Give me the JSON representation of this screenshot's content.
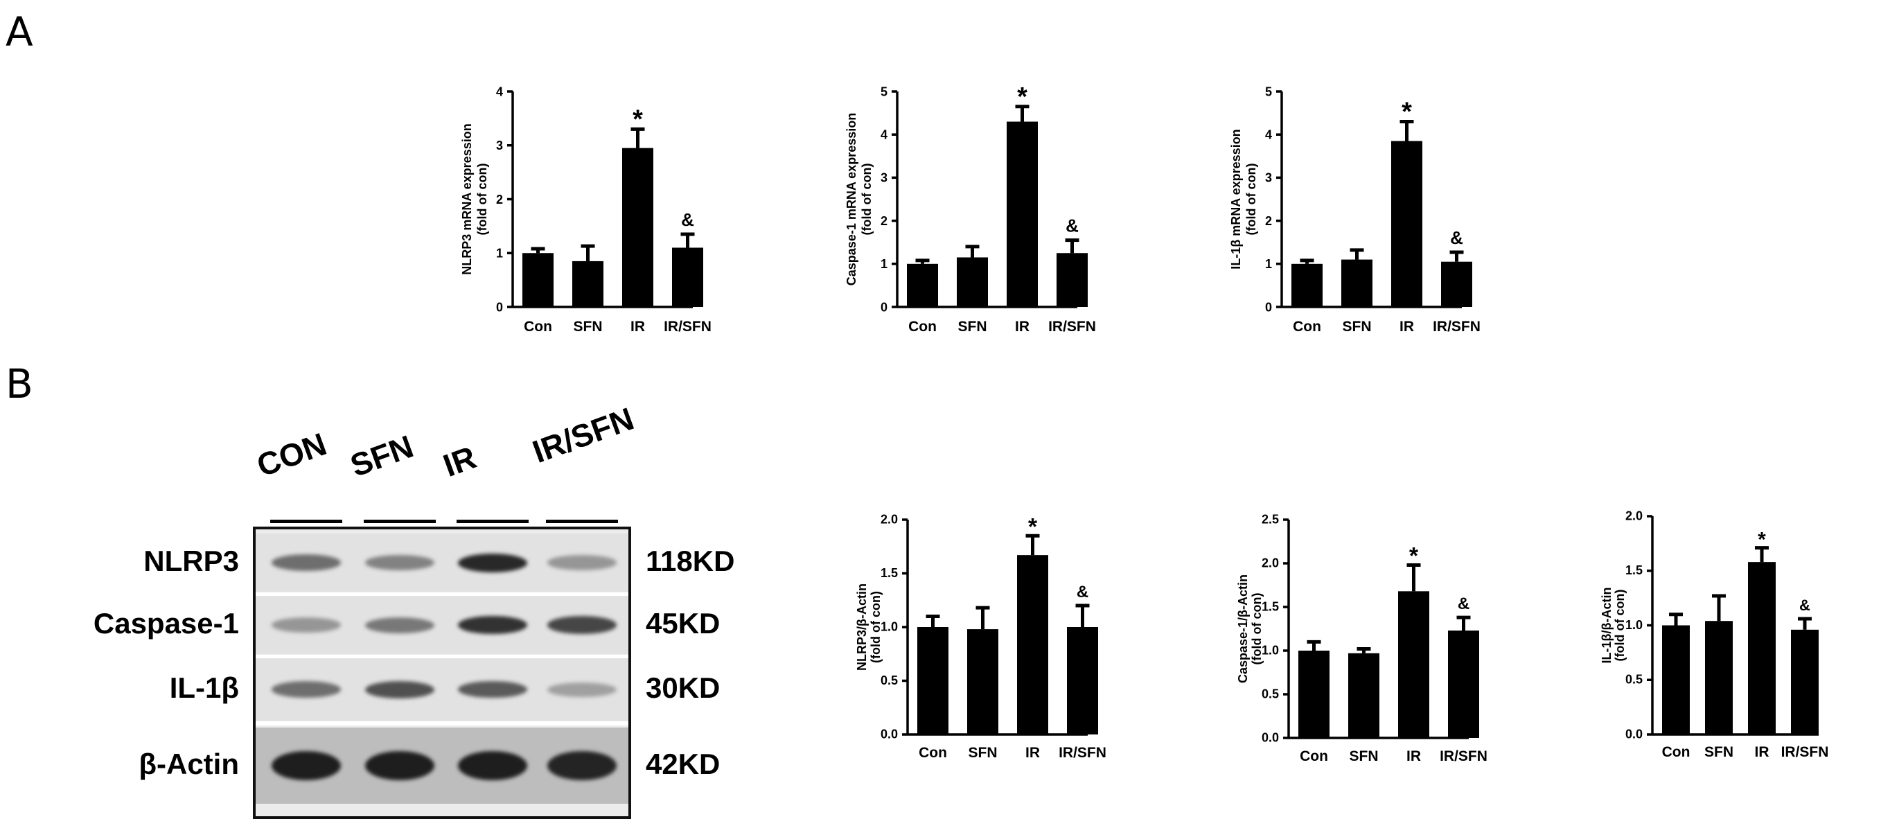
{
  "panels": {
    "a": "A",
    "b": "B"
  },
  "chart_data": [
    {
      "type": "bar",
      "panel": "A",
      "categories": [
        "Con",
        "SFN",
        "IR",
        "IR/SFN"
      ],
      "values": [
        1.0,
        0.85,
        2.95,
        1.1
      ],
      "errors": [
        0.08,
        0.28,
        0.35,
        0.25
      ],
      "annotations": [
        "",
        "",
        "*",
        "&"
      ],
      "ylabel": [
        "NLRP3 mRNA expression",
        "(fold of con)"
      ],
      "ylim": [
        0,
        4
      ],
      "yticks": [
        "0",
        "1",
        "2",
        "3",
        "4"
      ]
    },
    {
      "type": "bar",
      "panel": "A",
      "categories": [
        "Con",
        "SFN",
        "IR",
        "IR/SFN"
      ],
      "values": [
        1.0,
        1.15,
        4.3,
        1.25
      ],
      "errors": [
        0.08,
        0.25,
        0.35,
        0.3
      ],
      "annotations": [
        "",
        "",
        "*",
        "&"
      ],
      "ylabel": [
        "Caspase-1 mRNA expression",
        "(fold of con)"
      ],
      "ylim": [
        0,
        5
      ],
      "yticks": [
        "0",
        "1",
        "2",
        "3",
        "4",
        "5"
      ]
    },
    {
      "type": "bar",
      "panel": "A",
      "categories": [
        "Con",
        "SFN",
        "IR",
        "IR/SFN"
      ],
      "values": [
        1.0,
        1.1,
        3.85,
        1.05
      ],
      "errors": [
        0.08,
        0.22,
        0.45,
        0.22
      ],
      "annotations": [
        "",
        "",
        "*",
        "&"
      ],
      "ylabel": [
        "IL-1β mRNA expression",
        "(fold of con)"
      ],
      "ylim": [
        0,
        5
      ],
      "yticks": [
        "0",
        "1",
        "2",
        "3",
        "4",
        "5"
      ]
    },
    {
      "type": "bar",
      "panel": "B",
      "categories": [
        "Con",
        "SFN",
        "IR",
        "IR/SFN"
      ],
      "values": [
        1.0,
        0.98,
        1.67,
        1.0
      ],
      "errors": [
        0.1,
        0.2,
        0.18,
        0.2
      ],
      "annotations": [
        "",
        "",
        "*",
        "&"
      ],
      "ylabel": [
        "NLRP3/β-Actin",
        "(fold of con)"
      ],
      "ylim": [
        0,
        2.0
      ],
      "yticks": [
        "0.0",
        "0.5",
        "1.0",
        "1.5",
        "2.0"
      ]
    },
    {
      "type": "bar",
      "panel": "B",
      "categories": [
        "Con",
        "SFN",
        "IR",
        "IR/SFN"
      ],
      "values": [
        1.0,
        0.97,
        1.68,
        1.23
      ],
      "errors": [
        0.1,
        0.05,
        0.3,
        0.15
      ],
      "annotations": [
        "",
        "",
        "*",
        "&"
      ],
      "ylabel": [
        "Caspase-1/β-Actin",
        "(fold of con)"
      ],
      "ylim": [
        0,
        2.5
      ],
      "yticks": [
        "0.0",
        "0.5",
        "1.0",
        "1.5",
        "2.0",
        "2.5"
      ]
    },
    {
      "type": "bar",
      "panel": "B",
      "categories": [
        "Con",
        "SFN",
        "IR",
        "IR/SFN"
      ],
      "values": [
        1.0,
        1.04,
        1.58,
        0.96
      ],
      "errors": [
        0.1,
        0.23,
        0.13,
        0.1
      ],
      "annotations": [
        "",
        "",
        "*",
        "&"
      ],
      "ylabel": [
        "IL-1β/β-Actin",
        "(fold of con)"
      ],
      "ylim": [
        0,
        2.0
      ],
      "yticks": [
        "0.0",
        "0.5",
        "1.0",
        "1.5",
        "2.0"
      ]
    }
  ],
  "blot": {
    "lanes": [
      "CON",
      "SFN",
      "IR",
      "IR/SFN"
    ],
    "rows": [
      {
        "protein": "NLRP3",
        "size": "118KD",
        "intensity": [
          0.55,
          0.45,
          0.9,
          0.35
        ]
      },
      {
        "protein": "Caspase-1",
        "size": "45KD",
        "intensity": [
          0.35,
          0.5,
          0.85,
          0.75
        ]
      },
      {
        "protein": "IL-1β",
        "size": "30KD",
        "intensity": [
          0.55,
          0.7,
          0.65,
          0.3
        ]
      },
      {
        "protein": "β-Actin",
        "size": "42KD",
        "intensity": [
          0.95,
          0.95,
          0.95,
          0.92
        ]
      }
    ]
  },
  "colors": {
    "bar": "#000000",
    "blot_background": "#e6e6e6"
  }
}
